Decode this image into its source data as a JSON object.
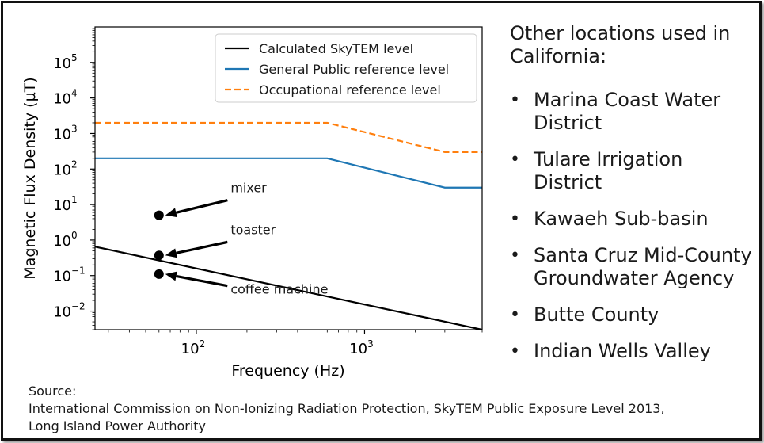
{
  "right_panel": {
    "heading": "Other locations used in California:",
    "bullet": "•",
    "locations": [
      "Marina Coast Water District",
      "Tulare Irrigation District",
      "Kawaeh Sub-basin",
      "Santa Cruz Mid-County Groundwater Agency",
      "Butte County",
      "Indian Wells Valley"
    ]
  },
  "source": {
    "label": "Source:",
    "lines": [
      "International Commission on Non-Ionizing Radiation Protection, SkyTEM Public Exposure Level 2013,",
      "Long Island Power Authority"
    ]
  },
  "chart_data": {
    "type": "line",
    "xscale": "log",
    "yscale": "log",
    "xlabel": "Frequency (Hz)",
    "ylabel": "Magnetic Flux Density (μT)",
    "xlim": [
      25,
      5000
    ],
    "ylim": [
      0.003,
      1000000
    ],
    "x_ticks": [
      {
        "value": 100,
        "base": "10",
        "exp": "2"
      },
      {
        "value": 1000,
        "base": "10",
        "exp": "3"
      }
    ],
    "y_ticks": [
      {
        "value": 0.01,
        "base": "10",
        "exp": "−2"
      },
      {
        "value": 0.1,
        "base": "10",
        "exp": "−1"
      },
      {
        "value": 1,
        "base": "10",
        "exp": "0"
      },
      {
        "value": 10,
        "base": "10",
        "exp": "1"
      },
      {
        "value": 100,
        "base": "10",
        "exp": "2"
      },
      {
        "value": 1000,
        "base": "10",
        "exp": "3"
      },
      {
        "value": 10000,
        "base": "10",
        "exp": "4"
      },
      {
        "value": 100000,
        "base": "10",
        "exp": "5"
      }
    ],
    "grid": false,
    "legend_position": "top-right",
    "series": [
      {
        "name": "Calculated SkyTEM level",
        "color": "#000000",
        "dash": "solid",
        "x": [
          25,
          5000
        ],
        "y": [
          0.65,
          0.003
        ]
      },
      {
        "name": "General Public reference level",
        "color": "#1f77b4",
        "dash": "solid",
        "x": [
          25,
          600,
          3000,
          5000
        ],
        "y": [
          200,
          200,
          30,
          30
        ]
      },
      {
        "name": "Occupational reference level",
        "color": "#ff7f0e",
        "dash": "dashed",
        "x": [
          25,
          600,
          3000,
          5000
        ],
        "y": [
          2000,
          2000,
          300,
          300
        ]
      }
    ],
    "points": [
      {
        "label": "mixer",
        "x": 60,
        "y": 5
      },
      {
        "label": "toaster",
        "x": 60,
        "y": 0.37
      },
      {
        "label": "coffee machine",
        "x": 60,
        "y": 0.11
      }
    ],
    "annotations": [
      {
        "label": "mixer",
        "text_x": 160,
        "text_y": 18
      },
      {
        "label": "toaster",
        "text_x": 160,
        "text_y": 1.2
      },
      {
        "label": "coffee machine",
        "text_x": 160,
        "text_y": 0.025
      }
    ]
  }
}
